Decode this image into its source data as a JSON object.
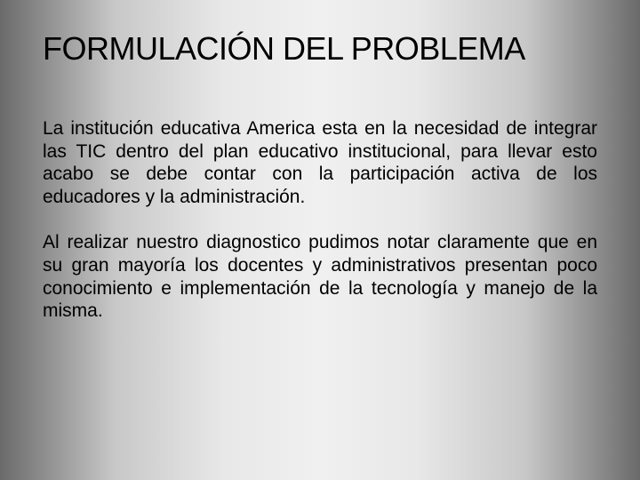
{
  "slide": {
    "title": "FORMULACIÓN DEL PROBLEMA",
    "paragraphs": [
      "La institución educativa America esta en la necesidad de integrar las TIC dentro del plan educativo institucional, para llevar esto acabo se debe contar con la participación activa de los educadores y la administración.",
      "Al realizar nuestro diagnostico pudimos notar claramente que en su gran mayoría los docentes y administrativos presentan poco conocimiento e implementación de la tecnología y manejo de la misma."
    ]
  },
  "style": {
    "background_gradient_stops": [
      "#6a6a6a",
      "#c8c8c8",
      "#e8e8e8",
      "#f0f0f0",
      "#e8e8e8",
      "#c8c8c8",
      "#6a6a6a"
    ],
    "title_fontsize": 36,
    "title_color": "#000000",
    "body_fontsize": 21,
    "body_color": "#000000",
    "body_align": "justify",
    "font_family": "Arial",
    "slide_width": 720,
    "slide_height": 540
  }
}
